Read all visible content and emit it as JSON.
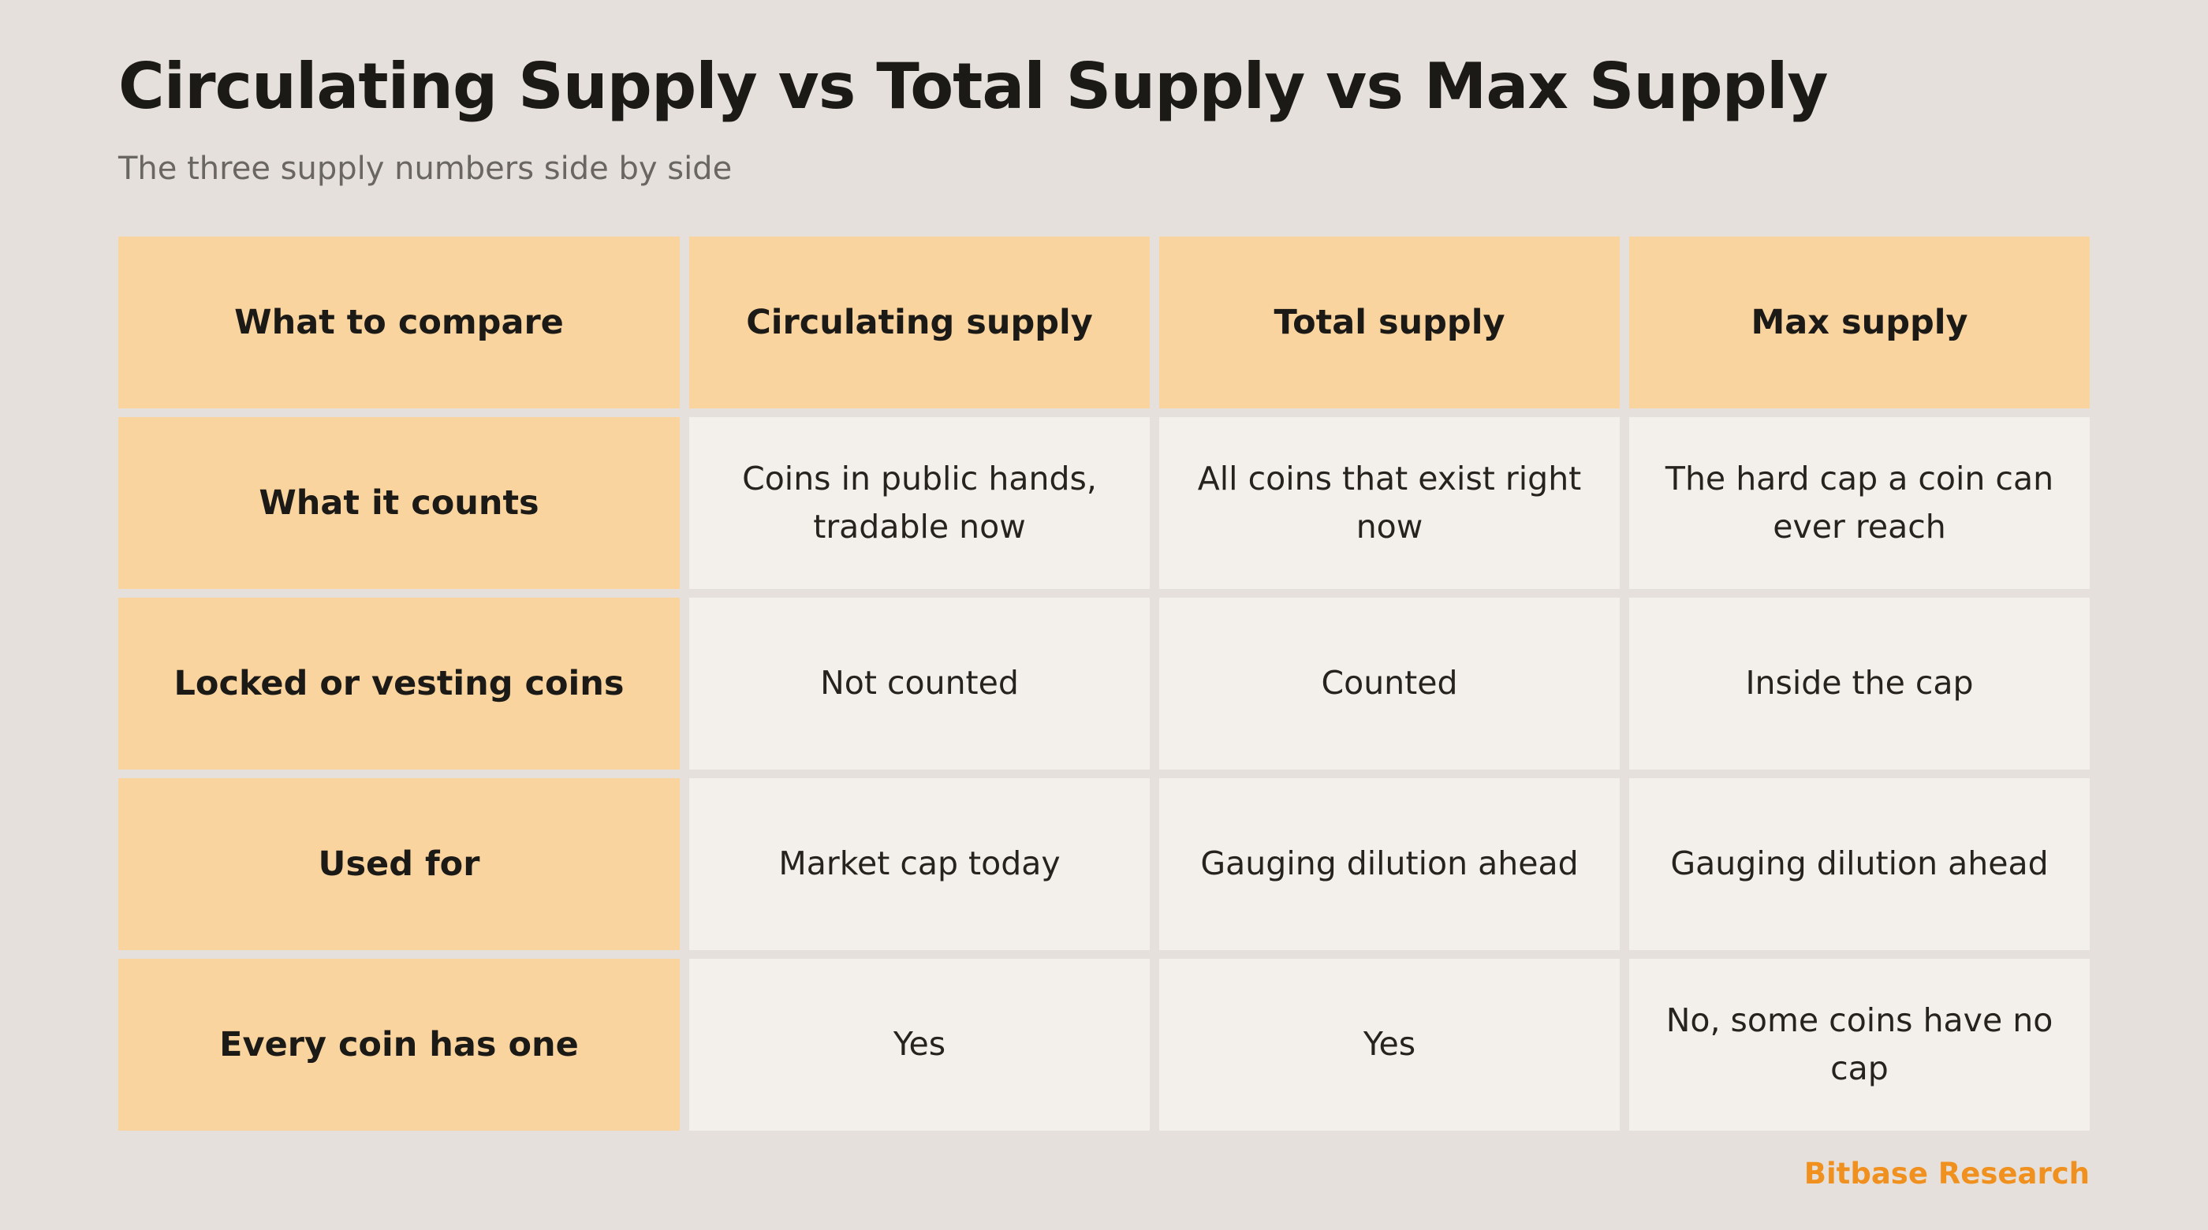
{
  "title": "Circulating Supply vs Total Supply vs Max Supply",
  "subtitle": "The three supply numbers side by side",
  "table": {
    "headers": [
      "What to compare",
      "Circulating supply",
      "Total supply",
      "Max supply"
    ],
    "rows": [
      {
        "label": "What it counts",
        "cells": [
          "Coins in public hands, tradable now",
          "All coins that exist right now",
          "The hard cap a coin can ever reach"
        ]
      },
      {
        "label": "Locked or vesting coins",
        "cells": [
          "Not counted",
          "Counted",
          "Inside the cap"
        ]
      },
      {
        "label": "Used for",
        "cells": [
          "Market cap today",
          "Gauging dilution ahead",
          "Gauging dilution ahead"
        ]
      },
      {
        "label": "Every coin has one",
        "cells": [
          "Yes",
          "Yes",
          "No, some coins have no cap"
        ]
      }
    ]
  },
  "footer": {
    "brand": "Bitbase Research"
  },
  "colors": {
    "background": "#e5e0db",
    "header_fill": "#fad49e",
    "cell_fill": "#f3f0eb",
    "brand": "#f0901e"
  }
}
